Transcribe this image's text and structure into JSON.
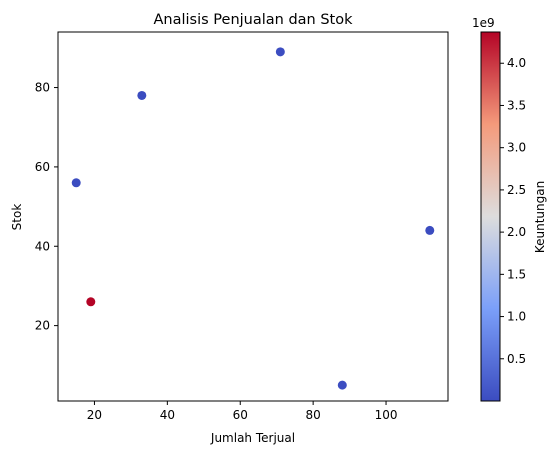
{
  "chart_data": {
    "type": "scatter",
    "title": "Analisis Penjualan dan Stok",
    "xlabel": "Jumlah Terjual",
    "ylabel": "Stok",
    "xlim": [
      10,
      117
    ],
    "ylim": [
      1,
      94
    ],
    "x_ticks": [
      20,
      40,
      60,
      80,
      100
    ],
    "y_ticks": [
      20,
      40,
      60,
      80
    ],
    "grid": false,
    "points": [
      {
        "x": 15,
        "y": 56,
        "profit": 20000000
      },
      {
        "x": 19,
        "y": 26,
        "profit": 4350000000
      },
      {
        "x": 33,
        "y": 78,
        "profit": 15000000
      },
      {
        "x": 71,
        "y": 89,
        "profit": 30000000
      },
      {
        "x": 88,
        "y": 5,
        "profit": 25000000
      },
      {
        "x": 112,
        "y": 44,
        "profit": 18000000
      }
    ],
    "colorbar": {
      "label": "Keuntungan",
      "colormap": "coolwarm",
      "range": [
        0,
        4.37
      ],
      "ticks": [
        0.5,
        1.0,
        1.5,
        2.0,
        2.5,
        3.0,
        3.5,
        4.0
      ],
      "tick_labels": [
        "0.5",
        "1.0",
        "1.5",
        "2.0",
        "2.5",
        "3.0",
        "3.5",
        "4.0"
      ],
      "offset_label": "1e9",
      "scale": 1000000000
    }
  }
}
